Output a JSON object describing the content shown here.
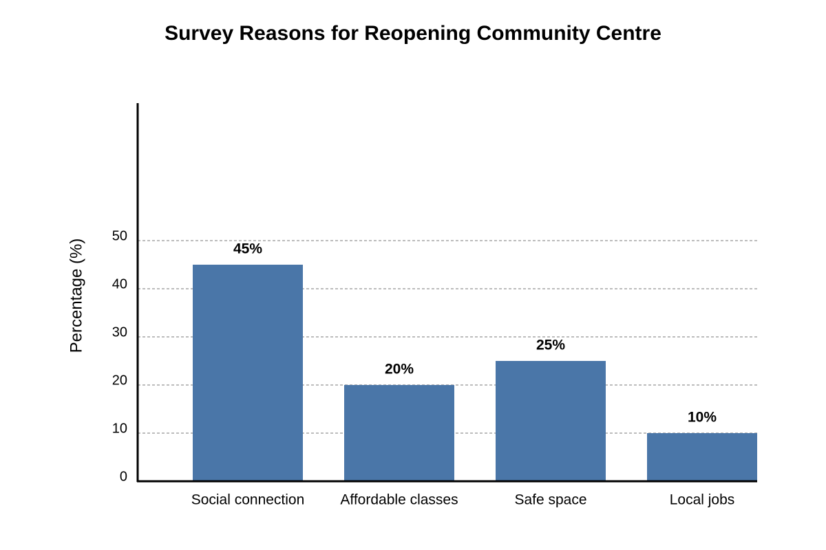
{
  "chart_data": {
    "type": "bar",
    "title": "Survey Reasons for Reopening Community Centre",
    "ylabel": "Percentage (%)",
    "categories": [
      "Social connection",
      "Affordable classes",
      "Safe space",
      "Local jobs"
    ],
    "values": [
      45,
      20,
      25,
      10
    ],
    "value_labels": [
      "45%",
      "20%",
      "25%",
      "10%"
    ],
    "color": "#4a76a8",
    "ylim": [
      0,
      78
    ],
    "yticks": [
      0,
      10,
      20,
      30,
      40,
      50
    ],
    "grid": true
  }
}
